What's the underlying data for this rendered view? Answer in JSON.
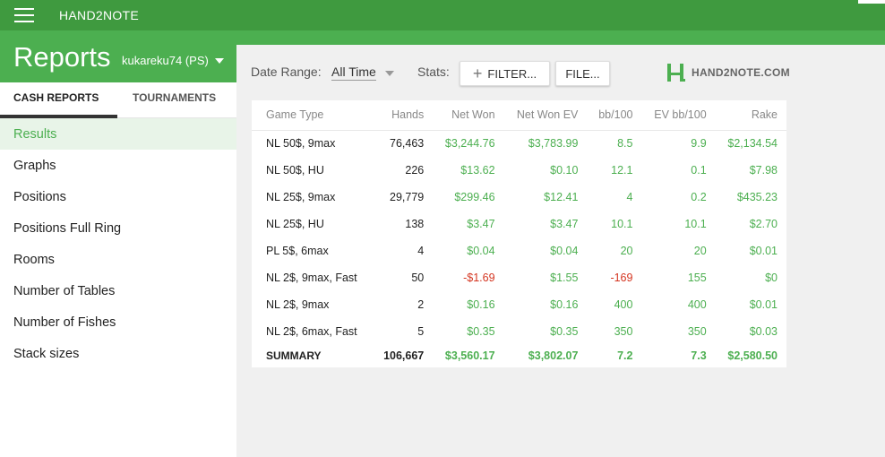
{
  "app": {
    "title": "HAND2NOTE"
  },
  "header": {
    "page_title": "Reports",
    "account": "kukareku74 (PS)"
  },
  "tabs": [
    {
      "label": "CASH REPORTS"
    },
    {
      "label": "TOURNAMENTS"
    }
  ],
  "nav": [
    {
      "label": "Results"
    },
    {
      "label": "Graphs"
    },
    {
      "label": "Positions"
    },
    {
      "label": "Positions Full Ring"
    },
    {
      "label": "Rooms"
    },
    {
      "label": "Number of Tables"
    },
    {
      "label": "Number of Fishes"
    },
    {
      "label": "Stack sizes"
    }
  ],
  "toolbar": {
    "date_label": "Date Range:",
    "date_value": "All Time",
    "stats_label": "Stats:",
    "filter_label": "FILTER...",
    "file_label": "FILE...",
    "logo_text": "HAND2NOTE.COM"
  },
  "table": {
    "headers": [
      "Game Type",
      "Hands",
      "Net Won",
      "Net Won  EV",
      "bb/100",
      "EV bb/100",
      "Rake"
    ],
    "rows": [
      [
        "NL 50$, 9max",
        "76,463",
        "$3,244.76",
        "$3,783.99",
        "8.5",
        "9.9",
        "$2,134.54"
      ],
      [
        "NL 50$, HU",
        "226",
        "$13.62",
        "$0.10",
        "12.1",
        "0.1",
        "$7.98"
      ],
      [
        "NL 25$, 9max",
        "29,779",
        "$299.46",
        "$12.41",
        "4",
        "0.2",
        "$435.23"
      ],
      [
        "NL 25$, HU",
        "138",
        "$3.47",
        "$3.47",
        "10.1",
        "10.1",
        "$2.70"
      ],
      [
        "PL 5$, 6max",
        "4",
        "$0.04",
        "$0.04",
        "20",
        "20",
        "$0.01"
      ],
      [
        "NL 2$, 9max, Fast",
        "50",
        "-$1.69",
        "$1.55",
        "-169",
        "155",
        "$0"
      ],
      [
        "NL 2$, 9max",
        "2",
        "$0.16",
        "$0.16",
        "400",
        "400",
        "$0.01"
      ],
      [
        "NL 2$, 6max, Fast",
        "5",
        "$0.35",
        "$0.35",
        "350",
        "350",
        "$0.03"
      ]
    ],
    "summary": [
      "SUMMARY",
      "106,667",
      "$3,560.17",
      "$3,802.07",
      "7.2",
      "7.3",
      "$2,580.50"
    ]
  },
  "colors": {
    "brand_green": "#4caf50",
    "dark_green": "#3f9a3f",
    "negative": "#d4341f"
  },
  "icons": {
    "menu": "hamburger-icon",
    "add": "plus-icon",
    "logo": "hand2note-logo-icon",
    "dropdown": "caret-down-icon"
  }
}
